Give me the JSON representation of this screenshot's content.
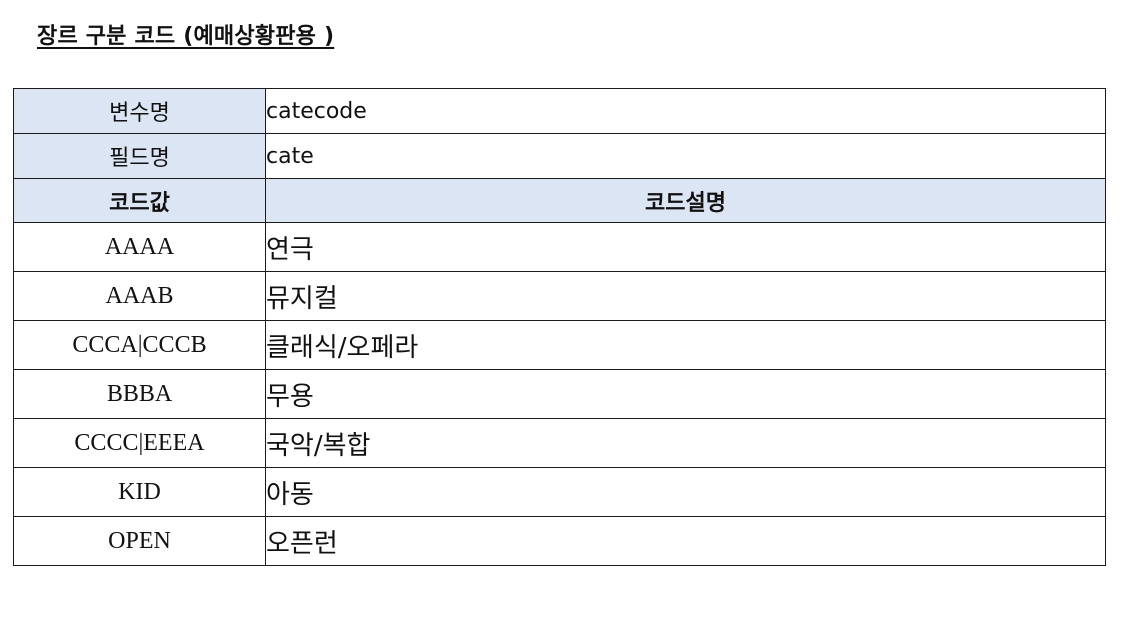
{
  "title": "장르 구분 코드 (예매상황판용 )",
  "meta": [
    {
      "label": "변수명",
      "value": "catecode"
    },
    {
      "label": "필드명",
      "value": "cate"
    }
  ],
  "header": {
    "code": "코드값",
    "desc": "코드설명"
  },
  "rows": [
    {
      "code": "AAAA",
      "desc": "연극"
    },
    {
      "code": "AAAB",
      "desc": "뮤지컬"
    },
    {
      "code": "CCCA|CCCB",
      "desc": "클래식/오페라"
    },
    {
      "code": "BBBA",
      "desc": "무용"
    },
    {
      "code": "CCCC|EEEA",
      "desc": "국악/복합"
    },
    {
      "code": "KID",
      "desc": "아동"
    },
    {
      "code": "OPEN",
      "desc": "오픈런"
    }
  ],
  "colors": {
    "header_bg": "#dbe5f3",
    "border": "#1a1a1a"
  }
}
